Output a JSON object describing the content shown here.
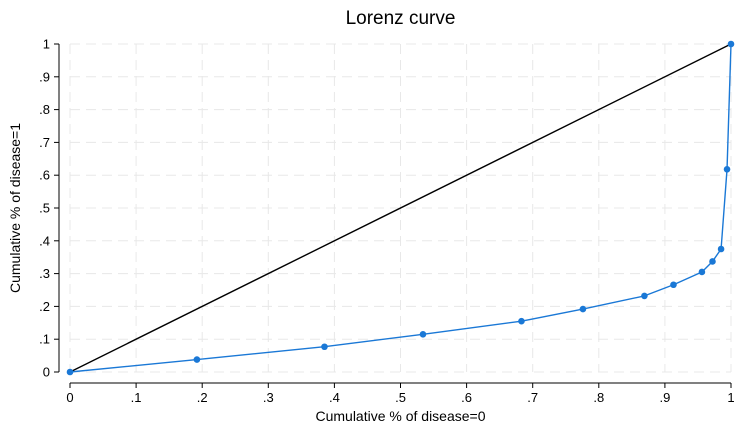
{
  "chart_data": {
    "type": "line",
    "title": "Lorenz curve",
    "xlabel": "Cumulative % of disease=0",
    "ylabel": "Cumulative % of disease=1",
    "xlim": [
      0,
      1
    ],
    "ylim": [
      0,
      1
    ],
    "x_ticks": [
      0,
      0.1,
      0.2,
      0.3,
      0.4,
      0.5,
      0.6,
      0.7,
      0.8,
      0.9,
      1
    ],
    "x_tick_labels": [
      "0",
      ".1",
      ".2",
      ".3",
      ".4",
      ".5",
      ".6",
      ".7",
      ".8",
      ".9",
      "1"
    ],
    "y_ticks": [
      0,
      0.1,
      0.2,
      0.3,
      0.4,
      0.5,
      0.6,
      0.7,
      0.8,
      0.9,
      1
    ],
    "y_tick_labels": [
      "0",
      ".1",
      ".2",
      ".3",
      ".4",
      ".5",
      ".6",
      ".7",
      ".8",
      ".9",
      "1"
    ],
    "grid": true,
    "legend": "none",
    "series": [
      {
        "color": "#1a78d6",
        "markers": true,
        "x": [
          0,
          0.192,
          0.385,
          0.534,
          0.683,
          0.776,
          0.869,
          0.913,
          0.956,
          0.972,
          0.985,
          0.994,
          1.0
        ],
        "y": [
          0,
          0.038,
          0.077,
          0.115,
          0.155,
          0.192,
          0.232,
          0.266,
          0.305,
          0.337,
          0.375,
          0.618,
          1.0
        ]
      },
      {
        "color": "#000000",
        "markers": false,
        "x": [
          0,
          1
        ],
        "y": [
          0,
          1
        ]
      }
    ]
  }
}
